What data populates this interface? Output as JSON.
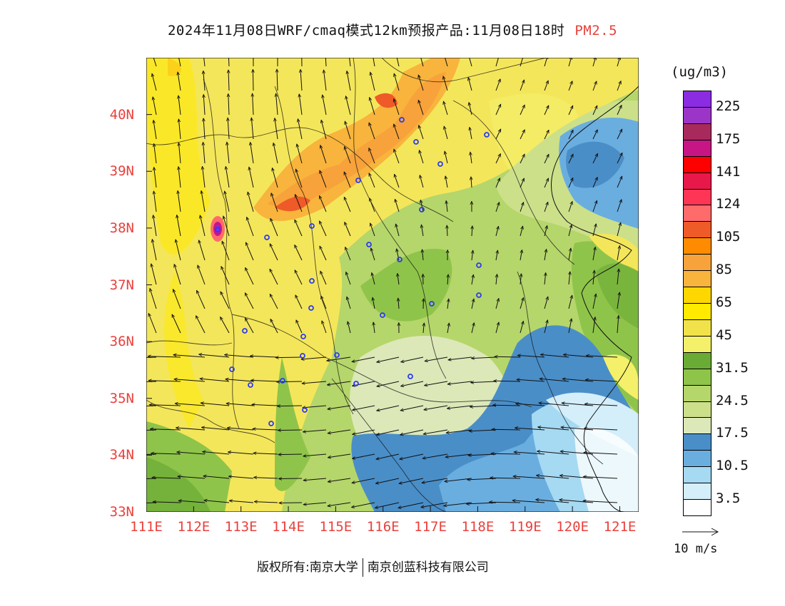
{
  "title": {
    "main": "2024年11月08日WRF/cmaq模式12km预报产品:11月08日18时",
    "variable": "PM2.5",
    "variable_color": "#e8413c"
  },
  "map": {
    "lat_labels": [
      "40N",
      "39N",
      "38N",
      "37N",
      "36N",
      "35N",
      "34N",
      "33N"
    ],
    "lon_labels": [
      "111E",
      "112E",
      "113E",
      "114E",
      "115E",
      "116E",
      "117E",
      "118E",
      "119E",
      "120E",
      "121E"
    ],
    "lat_range": [
      33,
      41
    ],
    "lon_range": [
      111,
      121.4
    ],
    "label_color": "#e8413c"
  },
  "colorbar": {
    "unit": "(ug/m3)",
    "levels_top_to_bottom": [
      {
        "color": "#8b2be2"
      },
      {
        "color": "#9b35c8"
      },
      {
        "color": "#a82a5c"
      },
      {
        "color": "#c71585"
      },
      {
        "color": "#ff0000"
      },
      {
        "color": "#e8184a"
      },
      {
        "color": "#ff3555"
      },
      {
        "color": "#ff6a6a"
      },
      {
        "color": "#ee5a28"
      },
      {
        "color": "#ff8c00"
      },
      {
        "color": "#f7a23a"
      },
      {
        "color": "#f8b43c"
      },
      {
        "color": "#ffd700"
      },
      {
        "color": "#ffea00"
      },
      {
        "color": "#f2e24a"
      },
      {
        "color": "#f4f06a"
      },
      {
        "color": "#6aab35"
      },
      {
        "color": "#8fc44a"
      },
      {
        "color": "#b5d66a"
      },
      {
        "color": "#cce08a"
      },
      {
        "color": "#dce8b8"
      },
      {
        "color": "#4a8ec8"
      },
      {
        "color": "#6aaee0"
      },
      {
        "color": "#a6d9f2"
      },
      {
        "color": "#d4eefa"
      },
      {
        "color": "#ffffff"
      }
    ],
    "labels": [
      "225",
      "175",
      "141",
      "124",
      "105",
      "85",
      "65",
      "45",
      "31.5",
      "24.5",
      "17.5",
      "10.5",
      "3.5"
    ]
  },
  "vector_reference": {
    "label": "10 m/s"
  },
  "footer": {
    "copyright": "版权所有:南京大学",
    "company": "南京创蓝科技有限公司"
  }
}
